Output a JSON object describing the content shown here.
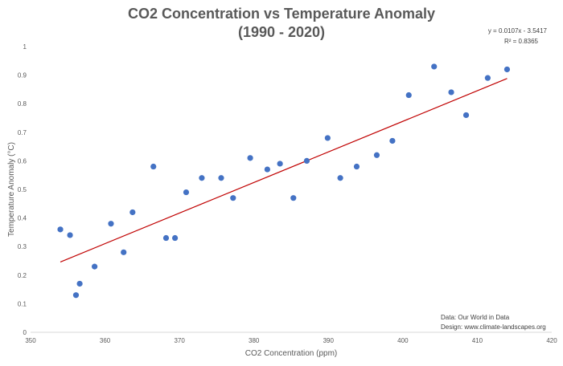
{
  "chart_data": {
    "type": "scatter",
    "title_line1": "CO2 Concentration vs Temperature Anomaly",
    "title_line2": "(1990 - 2020)",
    "xlabel": "CO2 Concentration (ppm)",
    "ylabel": "Temperature Anomaly (°C)",
    "xlim": [
      350,
      420
    ],
    "ylim": [
      0,
      1
    ],
    "x_ticks": [
      350,
      360,
      370,
      380,
      390,
      400,
      410,
      420
    ],
    "y_ticks": [
      0,
      0.1,
      0.2,
      0.3,
      0.4,
      0.5,
      0.6,
      0.7,
      0.8,
      0.9,
      1
    ],
    "grid": false,
    "marker_color": "#4472C4",
    "trendline": {
      "color": "#C00000",
      "x_range": [
        354.0,
        414.0
      ],
      "equation": "y = 0.0107x - 3.5417",
      "r_squared": "R² = 0.8365"
    },
    "points": [
      {
        "x": 354.0,
        "y": 0.36
      },
      {
        "x": 355.3,
        "y": 0.34
      },
      {
        "x": 356.1,
        "y": 0.13
      },
      {
        "x": 356.6,
        "y": 0.17
      },
      {
        "x": 358.6,
        "y": 0.23
      },
      {
        "x": 360.8,
        "y": 0.38
      },
      {
        "x": 362.5,
        "y": 0.28
      },
      {
        "x": 363.7,
        "y": 0.42
      },
      {
        "x": 366.5,
        "y": 0.58
      },
      {
        "x": 368.2,
        "y": 0.33
      },
      {
        "x": 369.4,
        "y": 0.33
      },
      {
        "x": 370.9,
        "y": 0.49
      },
      {
        "x": 373.0,
        "y": 0.54
      },
      {
        "x": 375.6,
        "y": 0.54
      },
      {
        "x": 377.2,
        "y": 0.47
      },
      {
        "x": 379.5,
        "y": 0.61
      },
      {
        "x": 381.8,
        "y": 0.57
      },
      {
        "x": 383.5,
        "y": 0.59
      },
      {
        "x": 385.3,
        "y": 0.47
      },
      {
        "x": 387.1,
        "y": 0.6
      },
      {
        "x": 389.9,
        "y": 0.68
      },
      {
        "x": 391.6,
        "y": 0.54
      },
      {
        "x": 393.8,
        "y": 0.58
      },
      {
        "x": 396.5,
        "y": 0.62
      },
      {
        "x": 398.6,
        "y": 0.67
      },
      {
        "x": 400.8,
        "y": 0.83
      },
      {
        "x": 404.2,
        "y": 0.93
      },
      {
        "x": 406.5,
        "y": 0.84
      },
      {
        "x": 408.5,
        "y": 0.76
      },
      {
        "x": 411.4,
        "y": 0.89
      },
      {
        "x": 414.0,
        "y": 0.92
      }
    ],
    "notes": [
      "Data: Our World in Data",
      "Design: www.climate-landscapes.org"
    ]
  }
}
